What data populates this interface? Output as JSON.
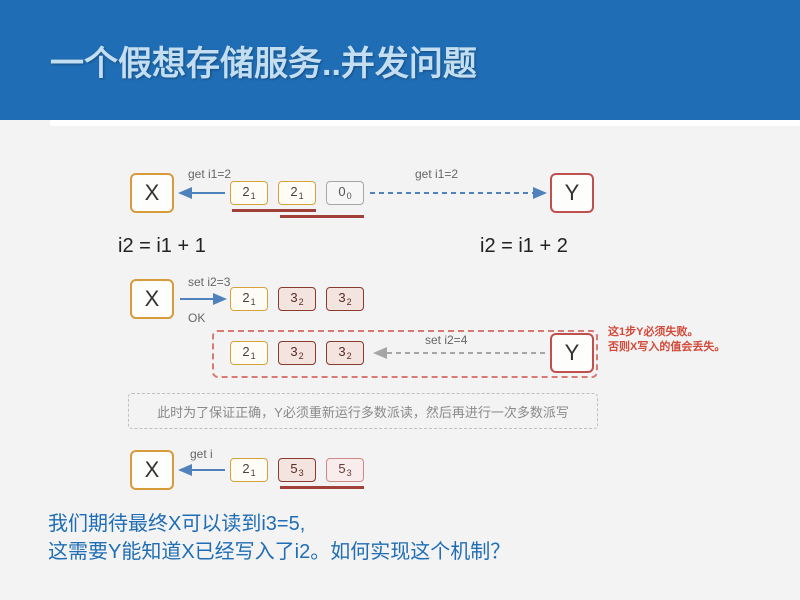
{
  "title": "一个假想存储服务..并发问题",
  "colors": {
    "band": "#1f6db5",
    "title_text": "#c3def1",
    "x_border": "#d79b3b",
    "y_border": "#c0504d",
    "cell_yellow": "#d7a23c",
    "cell_gray": "#a6a6a6",
    "cell_darkred": "#8b3a2e",
    "cell_pink": "#d08886",
    "underline": "#a04038",
    "dashed": "#d77a74",
    "graynote_border": "#bfbfbf",
    "graynote_text": "#8a8a8a",
    "rednote": "#d24a3a",
    "bottom_text": "#1f6db5",
    "arrow": "#4f81bd",
    "arrow_gray": "#a6a6a6"
  },
  "nodes": {
    "X": "X",
    "Y": "Y"
  },
  "row1": {
    "label_left": "get i1=2",
    "label_right": "get i1=2",
    "cells": [
      {
        "v": "2",
        "s": "1",
        "cls": "c-yellow"
      },
      {
        "v": "2",
        "s": "1",
        "cls": "c-yellow"
      },
      {
        "v": "0",
        "s": "0",
        "cls": "c-gray"
      }
    ]
  },
  "eq_left": "i2 = i1 + 1",
  "eq_right": "i2 = i1 + 2",
  "row2": {
    "label": "set i2=3",
    "label_ok": "OK",
    "cells": [
      {
        "v": "2",
        "s": "1",
        "cls": "c-yellow"
      },
      {
        "v": "3",
        "s": "2",
        "cls": "c-darkred"
      },
      {
        "v": "3",
        "s": "2",
        "cls": "c-darkred"
      }
    ]
  },
  "row3": {
    "label": "set i2=4",
    "cells": [
      {
        "v": "2",
        "s": "1",
        "cls": "c-yellow"
      },
      {
        "v": "3",
        "s": "2",
        "cls": "c-darkred"
      },
      {
        "v": "3",
        "s": "2",
        "cls": "c-darkred"
      }
    ]
  },
  "red_note": "这1步Y必须失败。\n否则X写入的值会丢失。",
  "gray_note": "此时为了保证正确，Y必须重新运行多数派读，然后再进行一次多数派写",
  "row4": {
    "label": "get i",
    "cells": [
      {
        "v": "2",
        "s": "1",
        "cls": "c-yellow"
      },
      {
        "v": "5",
        "s": "3",
        "cls": "c-darkred"
      },
      {
        "v": "5",
        "s": "3",
        "cls": "c-pink"
      }
    ]
  },
  "bottom_line1": "我们期待最终X可以读到i3=5,",
  "bottom_line2": "这需要Y能知道X已经写入了i2。如何实现这个机制？"
}
